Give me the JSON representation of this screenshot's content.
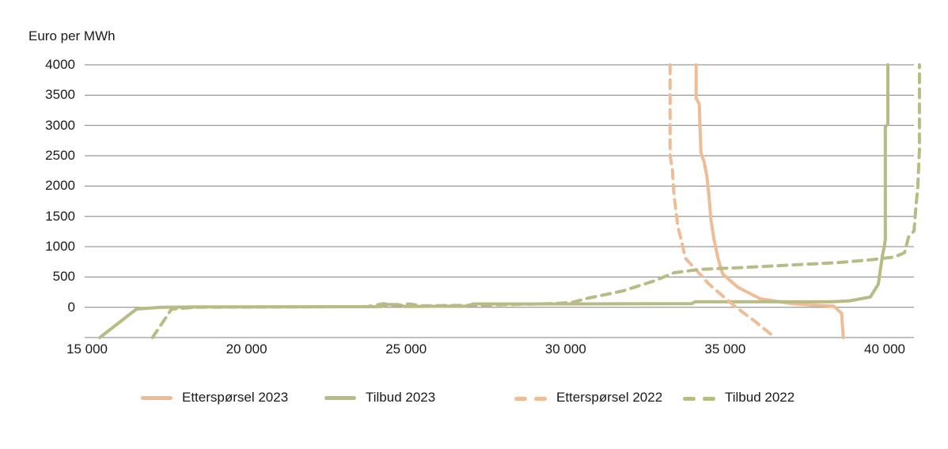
{
  "chart_data": {
    "type": "line",
    "title": "",
    "ylabel": "Euro per MWh",
    "xlabel": "",
    "ylim": [
      -500,
      4000
    ],
    "xlim": [
      15000,
      41500
    ],
    "grid": "horizontal-only",
    "gridline_color": "#808080",
    "text_color": "#1a1a1a",
    "legend_position": "bottom",
    "y_ticks": [
      4000,
      3500,
      3000,
      2500,
      2000,
      1500,
      1000,
      500,
      0
    ],
    "x_ticks": [
      15000,
      20000,
      25000,
      30000,
      35000,
      40000
    ],
    "x_tick_labels": [
      "15 000",
      "20 000",
      "25 000",
      "30 000",
      "35 000",
      "40 000"
    ],
    "series": [
      {
        "name": "Etterspørsel 2023",
        "color": "#eebc95",
        "dashed": false,
        "points": [
          [
            34090,
            4000
          ],
          [
            34090,
            3450
          ],
          [
            34190,
            3350
          ],
          [
            34210,
            3000
          ],
          [
            34240,
            2550
          ],
          [
            34340,
            2400
          ],
          [
            34430,
            2150
          ],
          [
            34500,
            1800
          ],
          [
            34550,
            1450
          ],
          [
            34650,
            1120
          ],
          [
            34780,
            800
          ],
          [
            34920,
            550
          ],
          [
            35400,
            330
          ],
          [
            36100,
            140
          ],
          [
            37100,
            60
          ],
          [
            37600,
            40
          ],
          [
            38400,
            20
          ],
          [
            38650,
            -100
          ],
          [
            38700,
            -500
          ]
        ]
      },
      {
        "name": "Tilbud 2023",
        "color": "#b8bb83",
        "dashed": false,
        "points": [
          [
            15400,
            -500
          ],
          [
            16550,
            -30
          ],
          [
            17300,
            0
          ],
          [
            18500,
            5
          ],
          [
            24200,
            10
          ],
          [
            24450,
            45
          ],
          [
            24750,
            45
          ],
          [
            24950,
            12
          ],
          [
            25800,
            15
          ],
          [
            26900,
            20
          ],
          [
            27100,
            55
          ],
          [
            30000,
            55
          ],
          [
            33950,
            60
          ],
          [
            34050,
            90
          ],
          [
            38300,
            90
          ],
          [
            38900,
            105
          ],
          [
            39550,
            170
          ],
          [
            39800,
            380
          ],
          [
            39930,
            860
          ],
          [
            39990,
            1010
          ],
          [
            40020,
            1120
          ],
          [
            40020,
            2980
          ],
          [
            40100,
            3020
          ],
          [
            40100,
            4000
          ]
        ]
      },
      {
        "name": "Etterspørsel 2022",
        "color": "#eebc95",
        "dashed": true,
        "points": [
          [
            33275,
            4000
          ],
          [
            33275,
            2500
          ],
          [
            33350,
            2250
          ],
          [
            33380,
            1950
          ],
          [
            33420,
            1750
          ],
          [
            33520,
            1320
          ],
          [
            33630,
            1100
          ],
          [
            33750,
            810
          ],
          [
            34120,
            600
          ],
          [
            34500,
            380
          ],
          [
            34870,
            210
          ],
          [
            35320,
            10
          ],
          [
            35940,
            -235
          ],
          [
            36560,
            -500
          ]
        ]
      },
      {
        "name": "Tilbud 2022",
        "color": "#b8bb83",
        "dashed": true,
        "points": [
          [
            17050,
            -500
          ],
          [
            17650,
            -30
          ],
          [
            18400,
            0
          ],
          [
            23800,
            10
          ],
          [
            24300,
            60
          ],
          [
            24700,
            25
          ],
          [
            25100,
            55
          ],
          [
            25500,
            25
          ],
          [
            27500,
            35
          ],
          [
            29600,
            60
          ],
          [
            30200,
            80
          ],
          [
            30700,
            150
          ],
          [
            31800,
            270
          ],
          [
            32800,
            440
          ],
          [
            33400,
            570
          ],
          [
            34200,
            625
          ],
          [
            35500,
            655
          ],
          [
            37000,
            695
          ],
          [
            38500,
            735
          ],
          [
            39600,
            785
          ],
          [
            40300,
            830
          ],
          [
            40620,
            900
          ],
          [
            40750,
            1160
          ],
          [
            40920,
            1260
          ],
          [
            40970,
            1600
          ],
          [
            41040,
            2000
          ],
          [
            41090,
            2600
          ],
          [
            41090,
            4000
          ]
        ]
      }
    ]
  }
}
